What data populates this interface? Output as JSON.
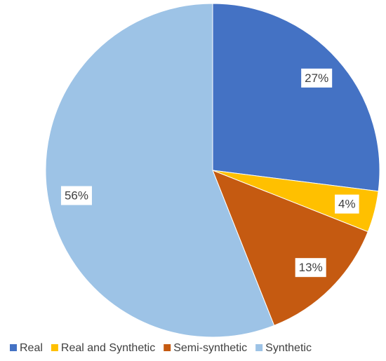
{
  "chart_data": {
    "type": "pie",
    "categories": [
      "Real",
      "Real and Synthetic",
      "Semi-synthetic",
      "Synthetic"
    ],
    "values": [
      27,
      4,
      13,
      56
    ],
    "value_labels": [
      "27%",
      "4%",
      "13%",
      "56%"
    ],
    "colors": [
      "#4472c4",
      "#ffc000",
      "#c55a11",
      "#9dc3e6"
    ],
    "legend": "bottom"
  }
}
